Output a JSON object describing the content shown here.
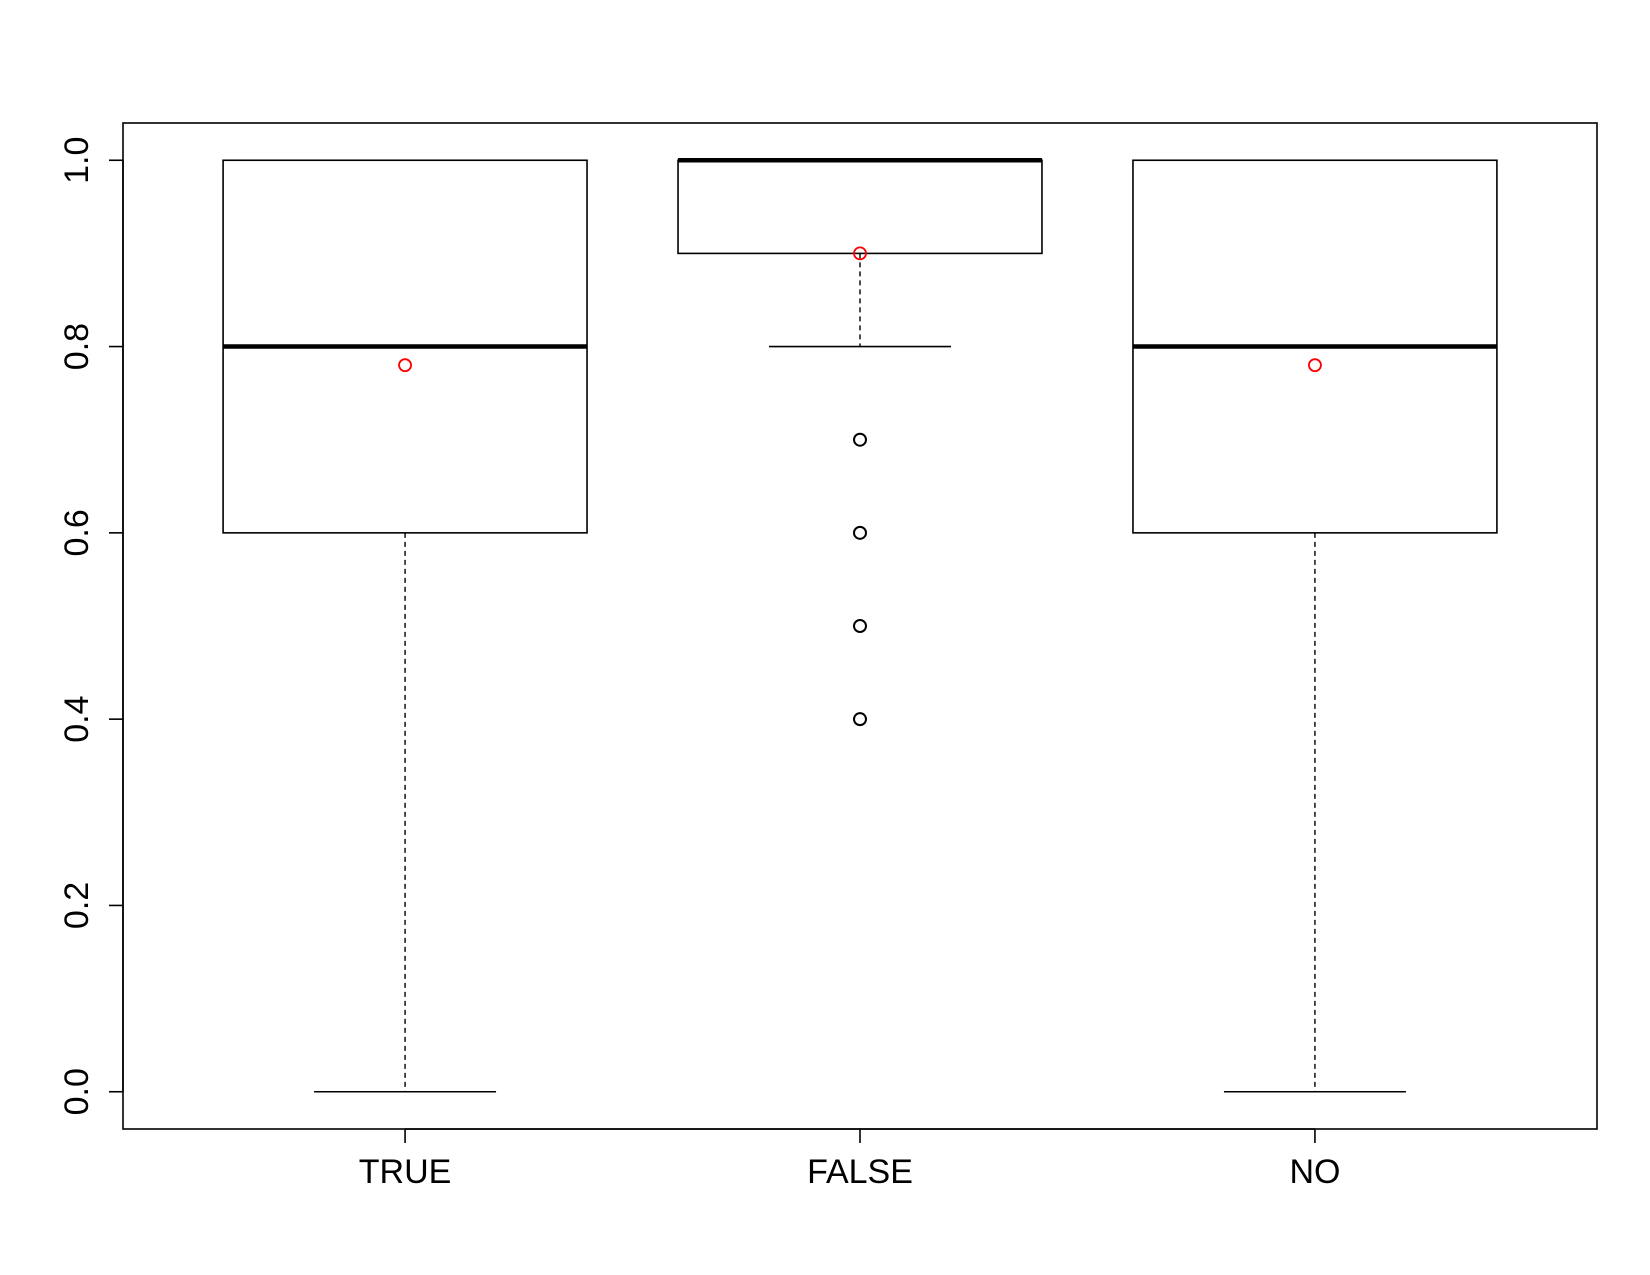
{
  "chart_data": {
    "type": "boxplot",
    "title": "",
    "xlabel": "",
    "ylabel": "",
    "categories": [
      "TRUE",
      "FALSE",
      "NO"
    ],
    "ylim": [
      -0.04,
      1.04
    ],
    "y_ticks": [
      0.0,
      0.2,
      0.4,
      0.6,
      0.8,
      1.0
    ],
    "y_tick_labels": [
      "0.0",
      "0.2",
      "0.4",
      "0.6",
      "0.8",
      "1.0"
    ],
    "boxes": [
      {
        "category": "TRUE",
        "whisker_low": 0.0,
        "q1": 0.6,
        "median": 0.8,
        "q3": 1.0,
        "whisker_high": 1.0,
        "mean": 0.78,
        "outliers": []
      },
      {
        "category": "FALSE",
        "whisker_low": 0.8,
        "q1": 0.9,
        "median": 1.0,
        "q3": 1.0,
        "whisker_high": 1.0,
        "mean": 0.9,
        "outliers": [
          0.7,
          0.6,
          0.5,
          0.4
        ]
      },
      {
        "category": "NO",
        "whisker_low": 0.0,
        "q1": 0.6,
        "median": 0.8,
        "q3": 1.0,
        "whisker_high": 1.0,
        "mean": 0.78,
        "outliers": []
      }
    ],
    "mean_marker_color": "#ff0000",
    "outlier_color": "#000000",
    "grid": false,
    "legend": "none"
  }
}
